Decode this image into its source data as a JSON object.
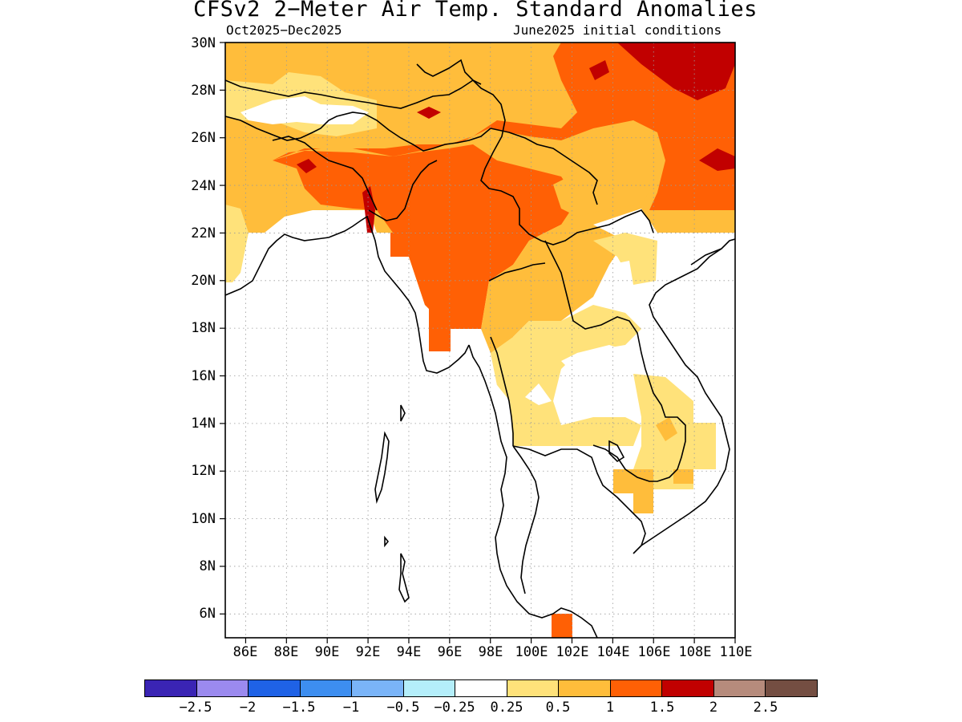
{
  "title": "CFSv2 2−Meter Air Temp. Standard Anomalies",
  "period": "Oct2025−Dec2025",
  "init": "June2025 initial conditions",
  "lat_labels": [
    "30N",
    "28N",
    "26N",
    "24N",
    "22N",
    "20N",
    "18N",
    "16N",
    "14N",
    "12N",
    "10N",
    "8N",
    "6N"
  ],
  "lon_labels": [
    "86E",
    "88E",
    "90E",
    "92E",
    "94E",
    "96E",
    "98E",
    "100E",
    "102E",
    "104E",
    "106E",
    "108E",
    "110E"
  ],
  "colorbar": {
    "colors": [
      "#3a24b4",
      "#9b8aef",
      "#1f62e6",
      "#3d8ef0",
      "#7ab4f8",
      "#b4eefa",
      "#ffffff",
      "#ffe27a",
      "#ffbd3b",
      "#ff6005",
      "#c10000",
      "#b68b7c",
      "#744e42"
    ],
    "labels": [
      "−2.5",
      "−2",
      "−1.5",
      "−1",
      "−0.5",
      "−0.25",
      "0.25",
      "0.5",
      "1",
      "1.5",
      "2",
      "2.5"
    ]
  },
  "map": {
    "extent": {
      "lon": [
        85,
        110
      ],
      "lat": [
        5,
        30
      ]
    },
    "colors": {
      "c05": "#ffe27a",
      "c1": "#ffbd3b",
      "c15": "#ff6005",
      "c2": "#c10000"
    }
  }
}
